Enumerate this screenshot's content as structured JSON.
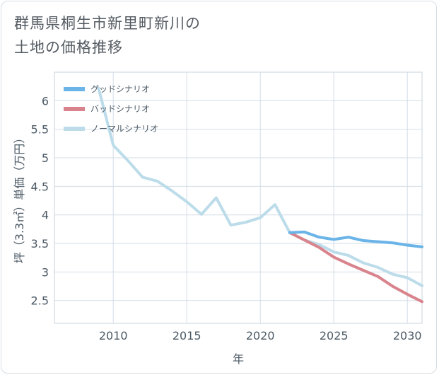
{
  "chart_data": {
    "type": "line",
    "title": "群馬県桐生市新里町新川の土地の価格推移",
    "title_lines": [
      "群馬県桐生市新里町新川の",
      "土地の価格推移"
    ],
    "xlabel": "年",
    "ylabel": "坪（3.3㎡）単価（万円）",
    "xlim": [
      2006,
      2031
    ],
    "ylim": [
      2.1,
      6.5
    ],
    "xticks": [
      2010,
      2015,
      2020,
      2025,
      2030
    ],
    "yticks": [
      2.5,
      3,
      3.5,
      4,
      4.5,
      5,
      5.5,
      6
    ],
    "grid": true,
    "legend_position": "top-left",
    "series": [
      {
        "name": "グッドシナリオ",
        "color": "#6ab4e8",
        "x": [
          2022,
          2023,
          2024,
          2025,
          2026,
          2027,
          2028,
          2029,
          2030,
          2031
        ],
        "y": [
          3.69,
          3.7,
          3.61,
          3.57,
          3.61,
          3.55,
          3.53,
          3.51,
          3.47,
          3.44
        ]
      },
      {
        "name": "バッドシナリオ",
        "color": "#d9838c",
        "x": [
          2022,
          2023,
          2024,
          2025,
          2026,
          2027,
          2028,
          2029,
          2030,
          2031
        ],
        "y": [
          3.69,
          3.56,
          3.43,
          3.26,
          3.14,
          3.03,
          2.92,
          2.75,
          2.61,
          2.48
        ]
      },
      {
        "name": "ノーマルシナリオ",
        "color": "#bcdcea",
        "x": [
          2009,
          2010,
          2011,
          2012,
          2013,
          2014,
          2015,
          2016,
          2017,
          2018,
          2019,
          2020,
          2021,
          2022,
          2023,
          2024,
          2025,
          2026,
          2027,
          2028,
          2029,
          2030,
          2031
        ],
        "y": [
          6.22,
          5.22,
          4.95,
          4.66,
          4.59,
          4.42,
          4.23,
          4.01,
          4.3,
          3.82,
          3.87,
          3.95,
          4.18,
          3.69,
          3.56,
          3.48,
          3.35,
          3.29,
          3.16,
          3.08,
          2.96,
          2.9,
          2.76
        ]
      }
    ]
  }
}
